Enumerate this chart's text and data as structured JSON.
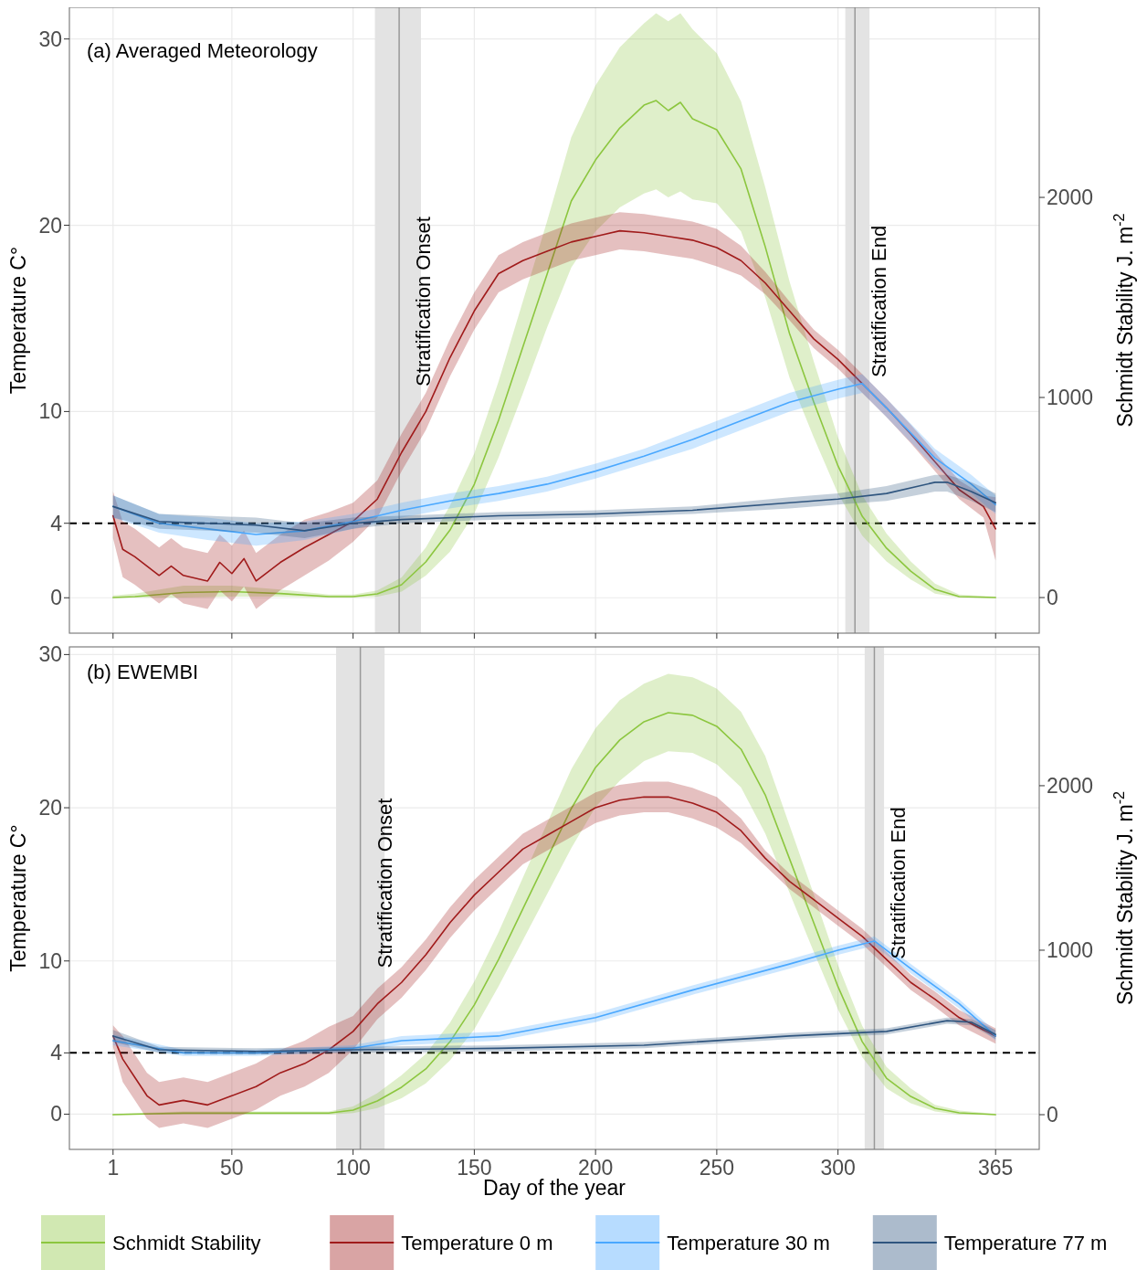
{
  "chart_data": [
    {
      "type": "line",
      "title": "(a) Averaged Meteorology",
      "ylabel": "Temperature C°",
      "y2label": "Schmidt Stability J. m$^{-2}$",
      "xlim": [
        -17,
        383
      ],
      "xticks": [
        1,
        50,
        100,
        150,
        200,
        250,
        300,
        365
      ],
      "ylim": [
        -1.9,
        31.7
      ],
      "yticks": [
        0,
        4,
        10,
        20,
        30
      ],
      "y2lim": [
        -178,
        2950
      ],
      "y2ticks": [
        0,
        1000,
        2000
      ],
      "grid": true,
      "tick_labels": "y",
      "legend": false,
      "ref_lines": [
        {
          "axis": "y",
          "value": 4,
          "color": "#000000",
          "line_style": "dashed"
        },
        {
          "axis": "x",
          "value": 119,
          "label": "Stratification Onset",
          "color": "#999999"
        },
        {
          "axis": "x",
          "value": 307,
          "label": "Stratification End",
          "color": "#999999"
        }
      ],
      "bands": [
        {
          "axis": "x",
          "from": 109,
          "to": 128,
          "color": "#e3e3e3"
        },
        {
          "axis": "x",
          "from": 303,
          "to": 313,
          "color": "#e3e3e3"
        }
      ],
      "series": [
        {
          "color": "#8cc63f",
          "axis": "y2",
          "x": [
            1,
            10,
            30,
            50,
            70,
            90,
            100,
            110,
            120,
            130,
            140,
            150,
            160,
            170,
            180,
            190,
            200,
            210,
            220,
            225,
            230,
            235,
            240,
            250,
            260,
            270,
            280,
            290,
            300,
            310,
            320,
            330,
            340,
            350,
            365
          ],
          "values": [
            0,
            5,
            25,
            30,
            20,
            5,
            5,
            18,
            64,
            178,
            338,
            566,
            886,
            1251,
            1616,
            1982,
            2187,
            2347,
            2461,
            2484,
            2434,
            2475,
            2393,
            2338,
            2142,
            1753,
            1320,
            977,
            658,
            406,
            247,
            132,
            41,
            5,
            0
          ],
          "lower": [
            0,
            0,
            0,
            5,
            5,
            0,
            0,
            5,
            30,
            110,
            230,
            420,
            700,
            1020,
            1350,
            1650,
            1830,
            1950,
            2020,
            2040,
            2000,
            2030,
            1990,
            1970,
            1830,
            1500,
            1100,
            800,
            520,
            310,
            180,
            90,
            20,
            0,
            0
          ],
          "upper": [
            10,
            20,
            60,
            60,
            40,
            15,
            15,
            35,
            100,
            250,
            460,
            720,
            1080,
            1480,
            1880,
            2300,
            2560,
            2750,
            2870,
            2920,
            2880,
            2920,
            2840,
            2720,
            2480,
            2050,
            1580,
            1180,
            800,
            510,
            320,
            180,
            70,
            15,
            5
          ]
        },
        {
          "color": "#a01b1b",
          "x": [
            1,
            5,
            10,
            20,
            25,
            30,
            40,
            45,
            50,
            55,
            60,
            70,
            80,
            90,
            100,
            110,
            120,
            130,
            140,
            150,
            160,
            170,
            180,
            190,
            200,
            210,
            220,
            230,
            240,
            250,
            260,
            270,
            280,
            290,
            300,
            310,
            320,
            330,
            340,
            350,
            360,
            365
          ],
          "values": [
            4.4,
            2.6,
            2.2,
            1.2,
            1.7,
            1.2,
            0.9,
            1.9,
            1.3,
            2.1,
            0.9,
            1.9,
            2.7,
            3.4,
            4.1,
            5.3,
            7.8,
            10,
            12.9,
            15.4,
            17.4,
            18.1,
            18.6,
            19.1,
            19.4,
            19.7,
            19.6,
            19.4,
            19.2,
            18.8,
            18.1,
            16.9,
            15.4,
            13.9,
            12.8,
            11.5,
            10.2,
            8.8,
            7.3,
            5.8,
            4.9,
            3.7
          ],
          "lower": [
            3.2,
            1.1,
            0.7,
            -0.3,
            0.2,
            -0.3,
            -0.6,
            0.4,
            -0.2,
            0.6,
            -0.6,
            0.4,
            1.2,
            2.0,
            3.0,
            4.3,
            6.8,
            9.0,
            11.9,
            14.4,
            16.4,
            17.1,
            17.6,
            18.1,
            18.4,
            18.7,
            18.6,
            18.4,
            18.2,
            17.8,
            17.3,
            16.3,
            14.9,
            13.4,
            12.3,
            11.0,
            9.7,
            8.3,
            6.8,
            5.3,
            4.3,
            2.0
          ],
          "upper": [
            5.7,
            4.1,
            3.7,
            2.7,
            3.2,
            2.7,
            2.4,
            3.4,
            2.8,
            3.6,
            2.4,
            3.4,
            4.2,
            4.6,
            5.1,
            6.3,
            8.8,
            11.0,
            13.9,
            16.4,
            18.4,
            19.1,
            19.6,
            20.1,
            20.4,
            20.7,
            20.6,
            20.4,
            20.2,
            19.8,
            18.9,
            17.5,
            15.9,
            14.4,
            13.3,
            12.0,
            10.7,
            9.3,
            7.8,
            6.3,
            5.5,
            5.4
          ]
        },
        {
          "color": "#4aa8ff",
          "x": [
            1,
            20,
            40,
            60,
            80,
            100,
            120,
            140,
            160,
            180,
            200,
            220,
            240,
            260,
            280,
            300,
            310,
            320,
            340,
            355,
            365
          ],
          "values": [
            4.9,
            4.0,
            3.7,
            3.4,
            3.6,
            4.1,
            4.7,
            5.2,
            5.6,
            6.1,
            6.8,
            7.6,
            8.5,
            9.5,
            10.5,
            11.2,
            11.5,
            10.2,
            7.5,
            6.1,
            5.0
          ],
          "lower": [
            4.3,
            3.5,
            3.1,
            2.8,
            3.1,
            3.7,
            4.3,
            4.8,
            5.2,
            5.7,
            6.4,
            7.2,
            8.0,
            9.0,
            10.0,
            10.7,
            11.0,
            9.7,
            7.0,
            5.6,
            4.5
          ],
          "upper": [
            5.5,
            4.5,
            4.3,
            4.0,
            4.1,
            4.5,
            5.1,
            5.6,
            6.0,
            6.5,
            7.2,
            8.0,
            9.0,
            10.0,
            11.0,
            11.7,
            12.0,
            10.7,
            8.0,
            6.6,
            5.5
          ]
        },
        {
          "color": "#2f557f",
          "x": [
            1,
            20,
            40,
            60,
            80,
            100,
            120,
            160,
            200,
            240,
            280,
            300,
            320,
            340,
            345,
            355,
            365
          ],
          "values": [
            4.9,
            4.1,
            4.0,
            3.9,
            3.6,
            4.0,
            4.2,
            4.4,
            4.5,
            4.7,
            5.1,
            5.3,
            5.6,
            6.2,
            6.2,
            5.7,
            5.1
          ],
          "lower": [
            4.3,
            3.7,
            3.6,
            3.5,
            3.2,
            3.7,
            4.0,
            4.2,
            4.3,
            4.5,
            4.8,
            5.0,
            5.2,
            5.7,
            5.7,
            5.2,
            4.6
          ],
          "upper": [
            5.5,
            4.5,
            4.4,
            4.3,
            4.0,
            4.3,
            4.4,
            4.6,
            4.7,
            4.9,
            5.4,
            5.6,
            6.0,
            6.6,
            6.6,
            6.2,
            5.6
          ]
        }
      ]
    },
    {
      "type": "line",
      "title": "(b) EWEMBI",
      "xlabel": "Day of the year",
      "ylabel": "Temperature C°",
      "y2label": "Schmidt Stability J. m$^{-2}$",
      "xlim": [
        -17,
        383
      ],
      "xticks": [
        1,
        50,
        100,
        150,
        200,
        250,
        300,
        365
      ],
      "ylim": [
        -2.3,
        30.5
      ],
      "yticks": [
        0,
        4,
        10,
        20,
        30
      ],
      "y2lim": [
        -211,
        2844
      ],
      "y2ticks": [
        0,
        1000,
        2000
      ],
      "grid": true,
      "legend": "bottom",
      "ref_lines": [
        {
          "axis": "y",
          "value": 4,
          "color": "#000000",
          "line_style": "dashed"
        },
        {
          "axis": "x",
          "value": 103,
          "label": "Stratification Onset",
          "color": "#999999"
        },
        {
          "axis": "x",
          "value": 315,
          "label": "Stratification End",
          "color": "#999999"
        }
      ],
      "bands": [
        {
          "axis": "x",
          "from": 93,
          "to": 113,
          "color": "#e3e3e3"
        },
        {
          "axis": "x",
          "from": 311,
          "to": 319,
          "color": "#e3e3e3"
        }
      ],
      "series": [
        {
          "name": "Schmidt Stability",
          "color": "#8cc63f",
          "axis": "y2",
          "x": [
            1,
            30,
            60,
            90,
            100,
            110,
            120,
            130,
            140,
            150,
            160,
            170,
            180,
            190,
            200,
            210,
            220,
            230,
            240,
            250,
            260,
            270,
            280,
            290,
            300,
            310,
            320,
            330,
            340,
            350,
            365
          ],
          "values": [
            0,
            10,
            10,
            10,
            28,
            83,
            167,
            278,
            444,
            667,
            944,
            1250,
            1556,
            1861,
            2111,
            2278,
            2389,
            2444,
            2428,
            2361,
            2222,
            1944,
            1556,
            1167,
            778,
            444,
            222,
            111,
            39,
            11,
            0
          ],
          "lower": [
            0,
            0,
            0,
            0,
            10,
            40,
            100,
            190,
            330,
            520,
            780,
            1060,
            1340,
            1620,
            1870,
            2030,
            2150,
            2210,
            2200,
            2130,
            1990,
            1710,
            1350,
            990,
            640,
            350,
            160,
            70,
            20,
            0,
            0
          ],
          "upper": [
            5,
            20,
            20,
            20,
            50,
            130,
            240,
            370,
            560,
            810,
            1110,
            1440,
            1770,
            2100,
            2350,
            2520,
            2620,
            2680,
            2660,
            2590,
            2450,
            2180,
            1760,
            1340,
            910,
            540,
            290,
            160,
            60,
            25,
            5
          ]
        },
        {
          "name": "Temperature 0 m",
          "color": "#a01b1b",
          "x": [
            1,
            5,
            10,
            15,
            20,
            30,
            40,
            50,
            60,
            70,
            80,
            90,
            100,
            110,
            120,
            130,
            140,
            150,
            160,
            170,
            180,
            190,
            200,
            210,
            220,
            230,
            240,
            250,
            260,
            270,
            280,
            290,
            300,
            310,
            320,
            330,
            340,
            350,
            365
          ],
          "values": [
            5.1,
            3.6,
            2.4,
            1.2,
            0.6,
            0.9,
            0.6,
            1.2,
            1.8,
            2.7,
            3.3,
            4.2,
            5.4,
            7.2,
            8.6,
            10.4,
            12.5,
            14.3,
            15.8,
            17.3,
            18.2,
            19.1,
            20.0,
            20.5,
            20.7,
            20.7,
            20.3,
            19.7,
            18.5,
            16.7,
            15.2,
            14.0,
            12.8,
            11.6,
            10.1,
            8.6,
            7.5,
            6.3,
            5.1
          ],
          "lower": [
            4.4,
            2.1,
            0.9,
            -0.3,
            -0.9,
            -0.6,
            -0.9,
            -0.3,
            0.3,
            1.2,
            1.8,
            2.7,
            4.2,
            6.2,
            7.6,
            9.4,
            11.5,
            13.3,
            14.8,
            16.3,
            17.2,
            18.1,
            19.0,
            19.5,
            19.7,
            19.7,
            19.3,
            18.7,
            17.7,
            16.2,
            14.7,
            13.5,
            12.3,
            11.1,
            9.6,
            8.1,
            7.0,
            5.8,
            4.6
          ],
          "upper": [
            5.8,
            5.1,
            3.9,
            2.7,
            2.1,
            2.4,
            2.1,
            2.7,
            3.3,
            4.2,
            4.8,
            5.7,
            6.4,
            8.2,
            9.6,
            11.4,
            13.5,
            15.3,
            16.8,
            18.3,
            19.2,
            20.1,
            21.0,
            21.5,
            21.7,
            21.7,
            21.3,
            20.7,
            19.3,
            17.2,
            15.7,
            14.5,
            13.3,
            12.1,
            10.6,
            9.1,
            8.0,
            6.8,
            5.6
          ]
        },
        {
          "name": "Temperature 30 m",
          "color": "#4aa8ff",
          "x": [
            1,
            30,
            60,
            100,
            120,
            160,
            200,
            240,
            280,
            300,
            315,
            330,
            350,
            365
          ],
          "values": [
            4.8,
            4.0,
            4.0,
            4.3,
            4.8,
            5.1,
            6.3,
            8.1,
            9.8,
            10.7,
            11.3,
            9.5,
            7.2,
            5.1
          ],
          "lower": [
            4.5,
            3.8,
            3.8,
            4.1,
            4.5,
            4.8,
            6.0,
            7.8,
            9.5,
            10.4,
            11.0,
            9.2,
            6.9,
            4.8
          ],
          "upper": [
            5.2,
            4.2,
            4.2,
            4.5,
            5.1,
            5.4,
            6.6,
            8.4,
            10.1,
            11.0,
            11.6,
            9.8,
            7.5,
            5.4
          ]
        },
        {
          "name": "Temperature 77 m",
          "color": "#2f557f",
          "x": [
            1,
            20,
            60,
            100,
            160,
            220,
            280,
            320,
            345,
            355,
            365
          ],
          "values": [
            5.1,
            4.2,
            4.1,
            4.2,
            4.3,
            4.5,
            5.1,
            5.4,
            6.1,
            6.0,
            5.2
          ],
          "lower": [
            4.7,
            4.0,
            3.9,
            4.0,
            4.1,
            4.3,
            4.9,
            5.2,
            5.9,
            5.8,
            4.9
          ],
          "upper": [
            5.5,
            4.4,
            4.3,
            4.4,
            4.5,
            4.7,
            5.3,
            5.6,
            6.3,
            6.2,
            5.5
          ]
        }
      ]
    }
  ]
}
